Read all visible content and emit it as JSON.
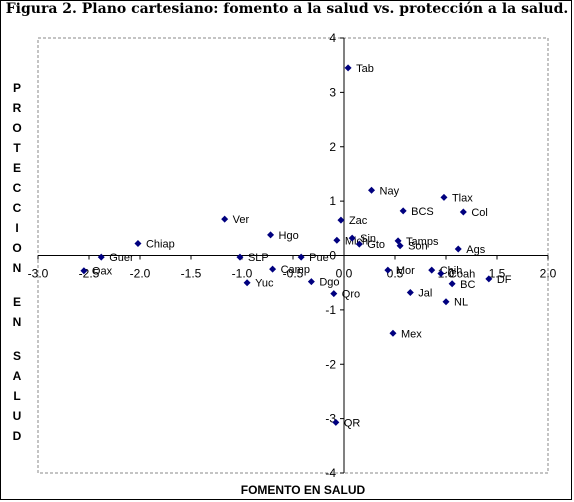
{
  "title": "Figura 2. Plano cartesiano: fomento a la salud vs. protección a la salud.",
  "chart_data": {
    "type": "scatter",
    "xlabel": "FOMENTO EN SALUD",
    "ylabel": "PROTECCION EN SALUD",
    "xlim": [
      -3.0,
      2.0
    ],
    "ylim": [
      -4,
      4
    ],
    "x_ticks": [
      "-3.0",
      "-2.5",
      "-2.0",
      "-1.5",
      "-1.0",
      "-0.5",
      "0.0",
      "0.5",
      "1.0",
      "1.5",
      "2.0"
    ],
    "y_ticks": [
      "4",
      "3",
      "2",
      "1",
      "0",
      "-1",
      "-2",
      "-3",
      "-4"
    ],
    "grid": false,
    "marker_color": "#00007f",
    "points": [
      {
        "label": "Tab",
        "x": 0.04,
        "y": 3.45
      },
      {
        "label": "Nay",
        "x": 0.27,
        "y": 1.2
      },
      {
        "label": "Tlax",
        "x": 0.98,
        "y": 1.07
      },
      {
        "label": "Col",
        "x": 1.17,
        "y": 0.8
      },
      {
        "label": "BCS",
        "x": 0.58,
        "y": 0.82
      },
      {
        "label": "Zac",
        "x": -0.03,
        "y": 0.65
      },
      {
        "label": "Ver",
        "x": -1.17,
        "y": 0.67
      },
      {
        "label": "Hgo",
        "x": -0.72,
        "y": 0.38
      },
      {
        "label": "Mich",
        "x": -0.07,
        "y": 0.28
      },
      {
        "label": "Sin",
        "x": 0.08,
        "y": 0.32
      },
      {
        "label": "Tamps",
        "x": 0.53,
        "y": 0.27
      },
      {
        "label": "Gto",
        "x": 0.15,
        "y": 0.21
      },
      {
        "label": "Son",
        "x": 0.55,
        "y": 0.18
      },
      {
        "label": "Ags",
        "x": 1.12,
        "y": 0.12
      },
      {
        "label": "Chiap",
        "x": -2.02,
        "y": 0.22
      },
      {
        "label": "Guer",
        "x": -2.38,
        "y": -0.03
      },
      {
        "label": "Oax",
        "x": -2.55,
        "y": -0.28
      },
      {
        "label": "SLP",
        "x": -1.02,
        "y": -0.03
      },
      {
        "label": "Pue",
        "x": -0.42,
        "y": -0.03
      },
      {
        "label": "Camp",
        "x": -0.7,
        "y": -0.25
      },
      {
        "label": "Yuc",
        "x": -0.95,
        "y": -0.5
      },
      {
        "label": "Dgo",
        "x": -0.32,
        "y": -0.48
      },
      {
        "label": "Qro",
        "x": -0.1,
        "y": -0.7
      },
      {
        "label": "Mor",
        "x": 0.43,
        "y": -0.27
      },
      {
        "label": "Chih",
        "x": 0.86,
        "y": -0.27
      },
      {
        "label": "Coah",
        "x": 0.95,
        "y": -0.33
      },
      {
        "label": "BC",
        "x": 1.06,
        "y": -0.52
      },
      {
        "label": "DF",
        "x": 1.42,
        "y": -0.43
      },
      {
        "label": "Jal",
        "x": 0.65,
        "y": -0.68
      },
      {
        "label": "NL",
        "x": 1.0,
        "y": -0.85
      },
      {
        "label": "Mex",
        "x": 0.48,
        "y": -1.43
      },
      {
        "label": "QR",
        "x": -0.08,
        "y": -3.07
      }
    ]
  }
}
